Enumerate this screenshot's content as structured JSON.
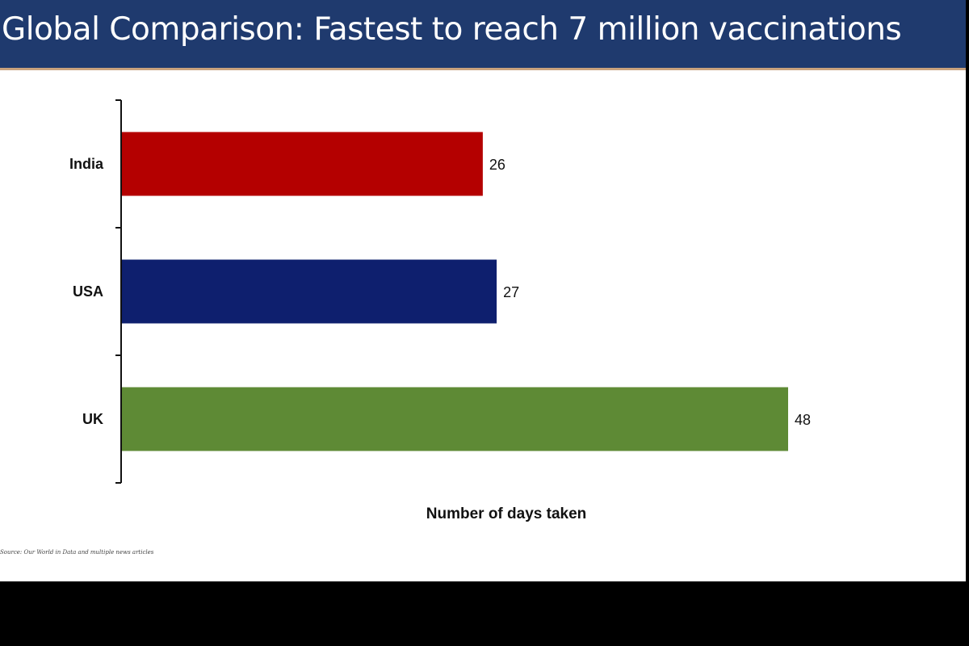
{
  "title": "Global Comparison: Fastest to reach 7 million vaccinations",
  "source": "Source: Our World in Data and multiple news articles",
  "colors": {
    "title_bar": "#1f3a6e",
    "india": "#b40000",
    "usa": "#0e1f6e",
    "uk": "#5e8a35"
  },
  "chart_data": {
    "type": "bar",
    "orientation": "horizontal",
    "categories": [
      "India",
      "USA",
      "UK"
    ],
    "values": [
      26,
      27,
      48
    ],
    "value_labels": [
      "26",
      "27",
      "48"
    ],
    "bar_colors": [
      "#b40000",
      "#0e1f6e",
      "#5e8a35"
    ],
    "xlabel": "Number of days taken",
    "ylabel": "",
    "xlim": [
      0,
      48
    ],
    "grid": false,
    "legend": "none"
  }
}
